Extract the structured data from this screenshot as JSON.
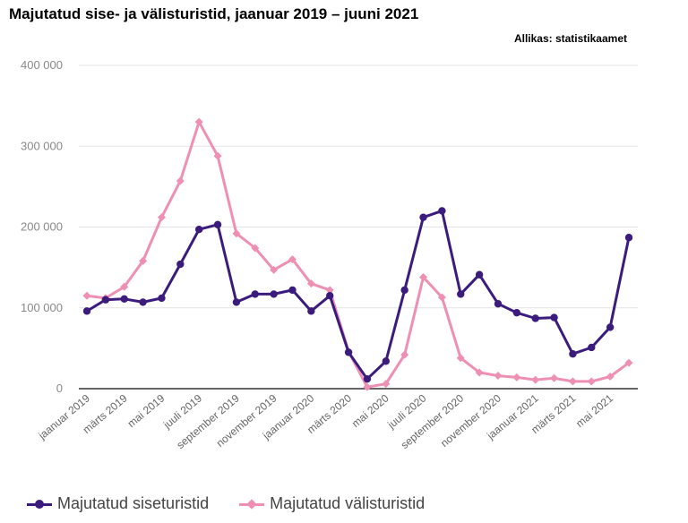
{
  "title": "Majutatud sise- ja välisturistid, jaanuar 2019 – juuni 2021",
  "source": "Allikas: statistikaamet",
  "colors": {
    "domestic": "#3b1c7d",
    "foreign": "#ee8fb4",
    "grid": "#e3e3e3",
    "axis": "#333333"
  },
  "chart_data": {
    "type": "line",
    "title": "Majutatud sise- ja välisturistid, jaanuar 2019 – juuni 2021",
    "xlabel": "",
    "ylabel": "",
    "ylim": [
      0,
      400000
    ],
    "yticks": [
      0,
      100000,
      200000,
      300000,
      400000
    ],
    "ytick_labels": [
      "0",
      "100 000",
      "200 000",
      "300 000",
      "400 000"
    ],
    "grid": true,
    "legend_position": "bottom",
    "x": [
      "jaanuar 2019",
      "veebruar 2019",
      "märts 2019",
      "aprill 2019",
      "mai 2019",
      "juuni 2019",
      "juuli 2019",
      "august 2019",
      "september 2019",
      "oktoober 2019",
      "november 2019",
      "detsember 2019",
      "jaanuar 2020",
      "veebruar 2020",
      "märts 2020",
      "aprill 2020",
      "mai 2020",
      "juuni 2020",
      "juuli 2020",
      "august 2020",
      "september 2020",
      "oktoober 2020",
      "november 2020",
      "detsember 2020",
      "jaanuar 2021",
      "veebruar 2021",
      "märts 2021",
      "aprill 2021",
      "mai 2021",
      "juuni 2021"
    ],
    "xtick_labels": [
      {
        "index": 0,
        "label": "jaanuar 2019"
      },
      {
        "index": 2,
        "label": "märts 2019"
      },
      {
        "index": 4,
        "label": "mai 2019"
      },
      {
        "index": 6,
        "label": "juuli 2019"
      },
      {
        "index": 8,
        "label": "september 2019"
      },
      {
        "index": 10,
        "label": "november 2019"
      },
      {
        "index": 12,
        "label": "jaanuar 2020"
      },
      {
        "index": 14,
        "label": "märts 2020"
      },
      {
        "index": 16,
        "label": "mai 2020"
      },
      {
        "index": 18,
        "label": "juuli 2020"
      },
      {
        "index": 20,
        "label": "september 2020"
      },
      {
        "index": 22,
        "label": "november 2020"
      },
      {
        "index": 24,
        "label": "jaanuar 2021"
      },
      {
        "index": 26,
        "label": "märts 2021"
      },
      {
        "index": 28,
        "label": "mai 2021"
      }
    ],
    "series": [
      {
        "name": "Majutatud siseturistid",
        "color_key": "domestic",
        "marker": "circle",
        "values": [
          96000,
          110000,
          111000,
          107000,
          112000,
          154000,
          197000,
          203000,
          107000,
          117000,
          117000,
          122000,
          96000,
          115000,
          45000,
          12000,
          34000,
          122000,
          212000,
          220000,
          117000,
          141000,
          105000,
          94000,
          87000,
          88000,
          43000,
          51000,
          76000,
          187000
        ]
      },
      {
        "name": "Majutatud välisturistid",
        "color_key": "foreign",
        "marker": "diamond",
        "values": [
          115000,
          112000,
          126000,
          158000,
          212000,
          257000,
          330000,
          288000,
          192000,
          174000,
          147000,
          160000,
          130000,
          122000,
          46000,
          2000,
          6000,
          42000,
          138000,
          113000,
          38000,
          20000,
          16000,
          14000,
          11000,
          13000,
          9000,
          9000,
          15000,
          32000
        ]
      }
    ]
  }
}
